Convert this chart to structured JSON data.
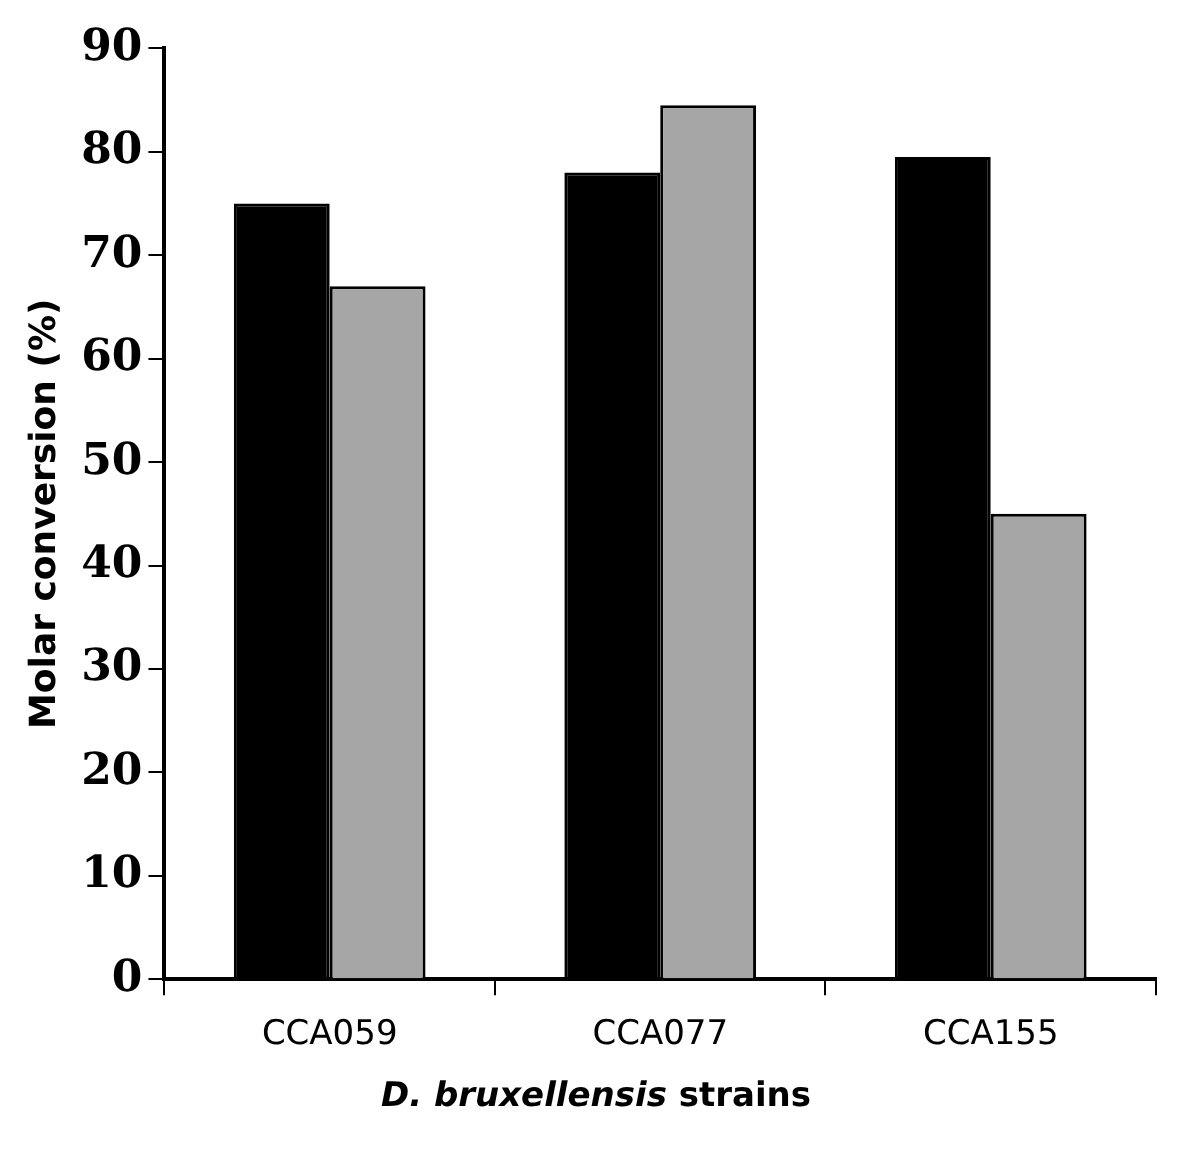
{
  "chart_data": {
    "type": "bar",
    "xlabel": "D. bruxellensis strains",
    "ylabel": "Molar conversion (%)",
    "categories": [
      "CCA059",
      "CCA077",
      "CCA155"
    ],
    "series": [
      {
        "color": "#000000",
        "values": [
          75,
          78,
          79.5
        ]
      },
      {
        "color": "#a6a6a6",
        "values": [
          67,
          84.5,
          45
        ]
      }
    ],
    "ylim": [
      0,
      90
    ],
    "yticks": [
      0,
      10,
      20,
      30,
      40,
      50,
      60,
      70,
      80,
      90
    ],
    "grid": false,
    "legend": false
  }
}
